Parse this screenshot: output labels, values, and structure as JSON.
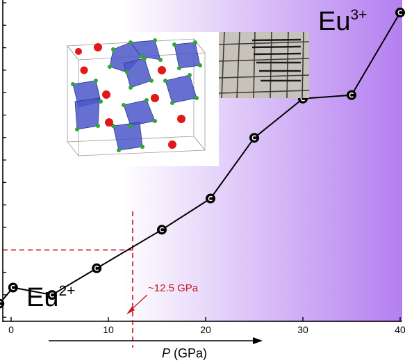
{
  "chart_data": {
    "type": "line",
    "xlabel_italic": "P",
    "xlabel_unit": " (GPa)",
    "ylabel": "",
    "xlim": [
      -1,
      40
    ],
    "ylim": [
      0,
      1
    ],
    "xticks": [
      0,
      10,
      20,
      30,
      40
    ],
    "xtick_labels": [
      "0",
      "10",
      "20",
      "30",
      "40"
    ],
    "series": [
      {
        "x": [
          -1.2,
          0.2,
          4.2,
          8.8,
          15.5,
          20.5,
          25.0,
          30.0,
          35.0,
          40.0
        ],
        "y": [
          0.055,
          0.105,
          0.082,
          0.165,
          0.285,
          0.382,
          0.571,
          0.693,
          0.704,
          0.961
        ]
      }
    ],
    "annotations": {
      "transition_pressure": 12.5,
      "transition_y": 0.222,
      "transition_label": "~12.5 GPa",
      "low_label": "Eu",
      "low_sup": "2+",
      "high_label": "Eu",
      "high_sup": "3+"
    }
  },
  "colors": {
    "line": "#000000",
    "marker_fill": "#000000",
    "marker_glyph": "#ffffff",
    "dash": "#c8141e",
    "gradient_end": "#b47ff0",
    "octahedron": "#4a57c8",
    "anion": "#2ea82e",
    "cation": "#e01818"
  }
}
